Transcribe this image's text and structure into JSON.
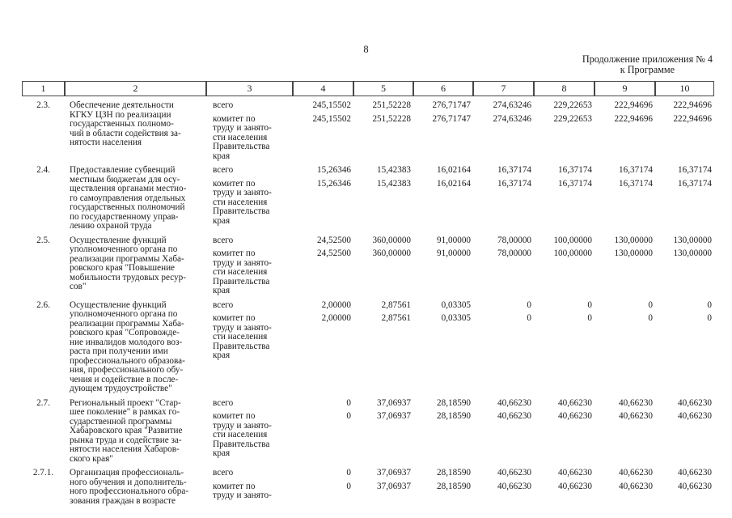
{
  "page": {
    "number": "8",
    "appendix_note": "Продолжение приложения № 4\nк Программе"
  },
  "table": {
    "header_cols": [
      "1",
      "2",
      "3",
      "4",
      "5",
      "6",
      "7",
      "8",
      "9",
      "10"
    ],
    "rows": [
      {
        "num": "2.3.",
        "name": "Обеспечение деятельности\nКГКУ ЦЗН по реализации\nгосударственных полномо-\nчий в области содействия за-\nнятости населения",
        "total_label": "всего",
        "committee_label": "комитет по\nтруду и занято-\nсти населения\nПравительства\nкрая",
        "values_total": [
          "245,15502",
          "251,52228",
          "276,71747",
          "274,63246",
          "229,22653",
          "222,94696",
          "222,94696"
        ],
        "values_committee": [
          "245,15502",
          "251,52228",
          "276,71747",
          "274,63246",
          "229,22653",
          "222,94696",
          "222,94696"
        ]
      },
      {
        "num": "2.4.",
        "name": "Предоставление субвенций\nместным бюджетам для осу-\nществления органами местно-\nго самоуправления отдельных\nгосударственных полномочий\nпо государственному управ-\nлению охраной труда",
        "total_label": "всего",
        "committee_label": "комитет по\nтруду и занято-\nсти населения\nПравительства\nкрая",
        "values_total": [
          "15,26346",
          "15,42383",
          "16,02164",
          "16,37174",
          "16,37174",
          "16,37174",
          "16,37174"
        ],
        "values_committee": [
          "15,26346",
          "15,42383",
          "16,02164",
          "16,37174",
          "16,37174",
          "16,37174",
          "16,37174"
        ]
      },
      {
        "num": "2.5.",
        "name": "Осуществление функций\nуполномоченного органа по\nреализации программы Хаба-\nровского края \"Повышение\nмобильности трудовых ресур-\nсов\"",
        "total_label": "всего",
        "committee_label": "комитет по\nтруду и занято-\nсти населения\nПравительства\nкрая",
        "values_total": [
          "24,52500",
          "360,00000",
          "91,00000",
          "78,00000",
          "100,00000",
          "130,00000",
          "130,00000"
        ],
        "values_committee": [
          "24,52500",
          "360,00000",
          "91,00000",
          "78,00000",
          "100,00000",
          "130,00000",
          "130,00000"
        ]
      },
      {
        "num": "2.6.",
        "name": "Осуществление функций\nуполномоченного органа по\nреализации программы Хаба-\nровского края \"Сопровожде-\nние инвалидов молодого воз-\nраста при получении ими\nпрофессионального образова-\nния, профессионального обу-\nчения и содействие в после-\nдующем трудоустройстве\"",
        "total_label": "всего",
        "committee_label": "комитет по\nтруду и занято-\nсти населения\nПравительства\nкрая",
        "values_total": [
          "2,00000",
          "2,87561",
          "0,03305",
          "0",
          "0",
          "0",
          "0"
        ],
        "values_committee": [
          "2,00000",
          "2,87561",
          "0,03305",
          "0",
          "0",
          "0",
          "0"
        ]
      },
      {
        "num": "2.7.",
        "name": "Региональный проект \"Стар-\nшее поколение\" в рамках го-\nсударственной программы\nХабаровского края \"Развитие\nрынка труда и содействие за-\nнятости населения Хабаров-\nского края\"",
        "total_label": "всего",
        "committee_label": "комитет по\nтруду и занято-\nсти населения\nПравительства\nкрая",
        "values_total": [
          "0",
          "37,06937",
          "28,18590",
          "40,66230",
          "40,66230",
          "40,66230",
          "40,66230"
        ],
        "values_committee": [
          "0",
          "37,06937",
          "28,18590",
          "40,66230",
          "40,66230",
          "40,66230",
          "40,66230"
        ]
      },
      {
        "num": "2.7.1.",
        "name": "Организация профессиональ-\nного обучения и дополнитель-\nного профессионального обра-\nзования граждан в возрасте",
        "total_label": "всего",
        "committee_label": "комитет по\nтруду и занято-",
        "values_total": [
          "0",
          "37,06937",
          "28,18590",
          "40,66230",
          "40,66230",
          "40,66230",
          "40,66230"
        ],
        "values_committee": [
          "0",
          "37,06937",
          "28,18590",
          "40,66230",
          "40,66230",
          "40,66230",
          "40,66230"
        ]
      }
    ]
  }
}
